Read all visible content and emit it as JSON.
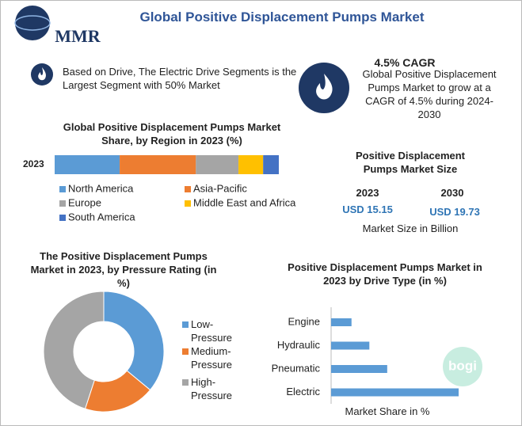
{
  "header": {
    "title": "Global Positive Displacement Pumps Market",
    "logo": "MMR"
  },
  "highlight": {
    "text": "Based on Drive, The Electric Drive Segments is the Largest Segment with 50% Market"
  },
  "cagr": {
    "title": "4.5% CAGR",
    "text": "Global Positive Displacement Pumps Market to grow at a CAGR of 4.5% during 2024-2030"
  },
  "market_size": {
    "title": "Positive Displacement Pumps Market Size",
    "columns": [
      {
        "year": "2023",
        "value": "USD 15.15"
      },
      {
        "year": "2030",
        "value": "USD 19.73"
      }
    ],
    "note": "Market Size in Billion"
  },
  "watermark": "bogi",
  "chart_data": [
    {
      "type": "stacked-bar",
      "title": "Global Positive Displacement Pumps Market Share, by Region in 2023 (%)",
      "categories": [
        "2023"
      ],
      "series": [
        {
          "name": "North America",
          "color": "#5b9bd5",
          "values": [
            29
          ]
        },
        {
          "name": "Asia-Pacific",
          "color": "#ed7d31",
          "values": [
            34
          ]
        },
        {
          "name": "Europe",
          "color": "#a5a5a5",
          "values": [
            19
          ]
        },
        {
          "name": "Middle East and Africa",
          "color": "#ffc000",
          "values": [
            11
          ]
        },
        {
          "name": "South America",
          "color": "#4472c4",
          "values": [
            7
          ]
        }
      ],
      "legend": "bottom"
    },
    {
      "type": "donut",
      "title": "The Positive Displacement Pumps Market in 2023, by Pressure Rating (in %)",
      "categories": [
        "Low-Pressure",
        "Medium-Pressure",
        "High-Pressure"
      ],
      "values": [
        36,
        19,
        45
      ],
      "colors": [
        "#5b9bd5",
        "#ed7d31",
        "#a5a5a5"
      ],
      "legend": "right"
    },
    {
      "type": "hbar",
      "title": "Positive Displacement Pumps Market in 2023 by Drive Type (in %)",
      "x_label": "Market Share in %",
      "categories": [
        "Engine",
        "Hydraulic",
        "Pneumatic",
        "Electric"
      ],
      "values": [
        8,
        15,
        22,
        50
      ],
      "color": "#5b9bd5"
    }
  ]
}
